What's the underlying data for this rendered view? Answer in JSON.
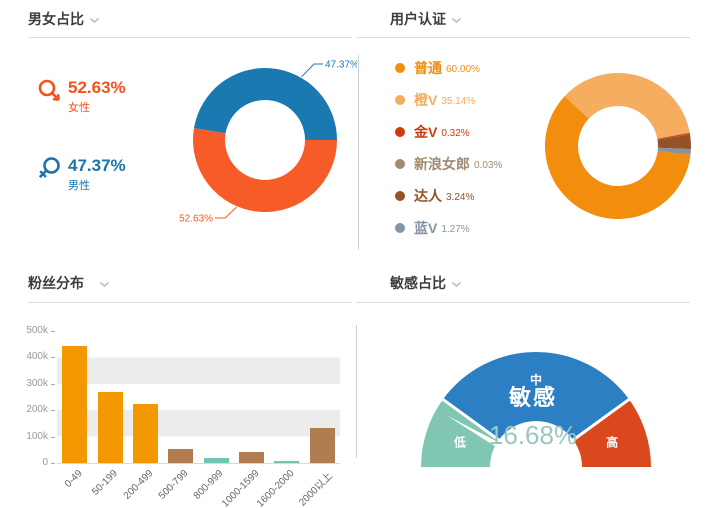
{
  "page": {
    "background": "#ffffff"
  },
  "panels": {
    "gender": {
      "title": "男女占比",
      "stats": [
        {
          "label": "女性",
          "value": "52.63%",
          "color": "#f4511e"
        },
        {
          "label": "男性",
          "value": "47.37%",
          "color": "#1a74ab"
        }
      ]
    },
    "verification": {
      "title": "用户认证"
    },
    "fans": {
      "title": "粉丝分布"
    },
    "sensitive": {
      "title": "敏感占比"
    }
  },
  "chart_data": [
    {
      "type": "pie",
      "title": "男女占比",
      "labels": [
        "女性",
        "男性"
      ],
      "values": [
        52.63,
        47.37
      ],
      "value_labels": [
        "52.63%",
        "47.37%"
      ],
      "colors": [
        "#f75b27",
        "#1b79b2"
      ],
      "inner_radius_ratio": 0.56,
      "label_style": "outside-callout"
    },
    {
      "type": "pie",
      "title": "用户认证",
      "labels": [
        "普通",
        "橙V",
        "金V",
        "新浪女郎",
        "达人",
        "蓝V"
      ],
      "values": [
        60.0,
        35.14,
        0.32,
        0.03,
        3.24,
        1.27
      ],
      "value_labels": [
        "60.00%",
        "35.14%",
        "0.32%",
        "0.03%",
        "3.24%",
        "1.27%"
      ],
      "colors": [
        "#f28d0e",
        "#f5ad5f",
        "#cb3b12",
        "#a08a72",
        "#955229",
        "#8494a5"
      ],
      "legend_position": "left",
      "start_angle": 137,
      "slice_order": [
        1,
        2,
        3,
        4,
        5,
        0
      ],
      "inner_radius_ratio": 0.55
    },
    {
      "type": "bar",
      "title": "粉丝分布",
      "categories": [
        "0-49",
        "50-199",
        "200-499",
        "500-799",
        "800-999",
        "1000-1599",
        "1600-2000",
        "2000以上"
      ],
      "values": [
        445000,
        268000,
        225000,
        52000,
        18000,
        42000,
        8500,
        132000
      ],
      "bar_colors": [
        "#f39800",
        "#f39800",
        "#f39800",
        "#b07c50",
        "#72c5b2",
        "#b07c50",
        "#72c5b2",
        "#b07c50"
      ],
      "y_ticks": [
        "0",
        "100k",
        "200k",
        "300k",
        "400k",
        "500k"
      ],
      "ylim": [
        0,
        500000
      ],
      "grid": "horizontal striped bands",
      "stripe_color": "#ececec",
      "xlabel_rotation": 45
    },
    {
      "type": "gauge",
      "title": "敏感占比",
      "value": 16.68,
      "value_label": "16.68%",
      "center_label": "敏感",
      "min": 0,
      "max": 100,
      "zones": [
        {
          "label": "低",
          "from": 0,
          "to": 20,
          "color": "#81c6b3"
        },
        {
          "label": "中",
          "from": 20,
          "to": 80,
          "color": "#2c7fc2"
        },
        {
          "label": "高",
          "from": 80,
          "to": 100,
          "color": "#d9491d"
        }
      ],
      "value_color": "#9cc7c1",
      "needle_color": "#ffffff",
      "tick_color": "#ffffff"
    }
  ]
}
